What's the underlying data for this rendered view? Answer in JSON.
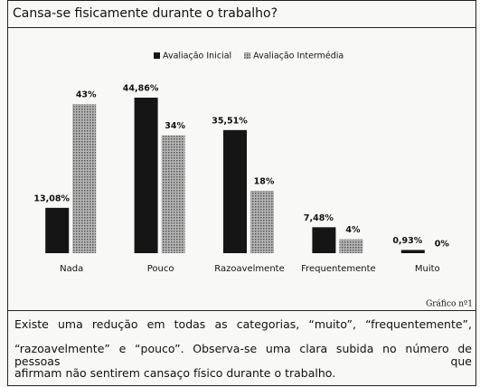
{
  "chart_data": {
    "type": "bar",
    "title": "Cansa-se fisicamente durante o trabalho?",
    "categories": [
      "Nada",
      "Pouco",
      "Razoavelmente",
      "Frequentemente",
      "Muito"
    ],
    "series": [
      {
        "name": "Avaliação Inicial",
        "color": "#151515",
        "values": [
          13.08,
          44.86,
          35.51,
          7.48,
          0.93
        ],
        "value_labels": [
          "13,08%",
          "44,86%",
          "35,51%",
          "7,48%",
          "0,93%"
        ]
      },
      {
        "name": "Avaliação Intermédia",
        "color": "#8a8a8a",
        "values": [
          43,
          34,
          18,
          4,
          0
        ],
        "value_labels": [
          "43%",
          "34%",
          "18%",
          "4%",
          "0%"
        ]
      }
    ],
    "legend": "top",
    "caption": "Gráfico nº1"
  },
  "paragraph": [
    "Existe uma redução em todas as categorias, “muito”, “frequentemente”,",
    "“razoavelmente” e “pouco”. Observa-se uma clara subida no número de pessoas que",
    "afirmam não sentirem cansaço físico durante o trabalho."
  ]
}
